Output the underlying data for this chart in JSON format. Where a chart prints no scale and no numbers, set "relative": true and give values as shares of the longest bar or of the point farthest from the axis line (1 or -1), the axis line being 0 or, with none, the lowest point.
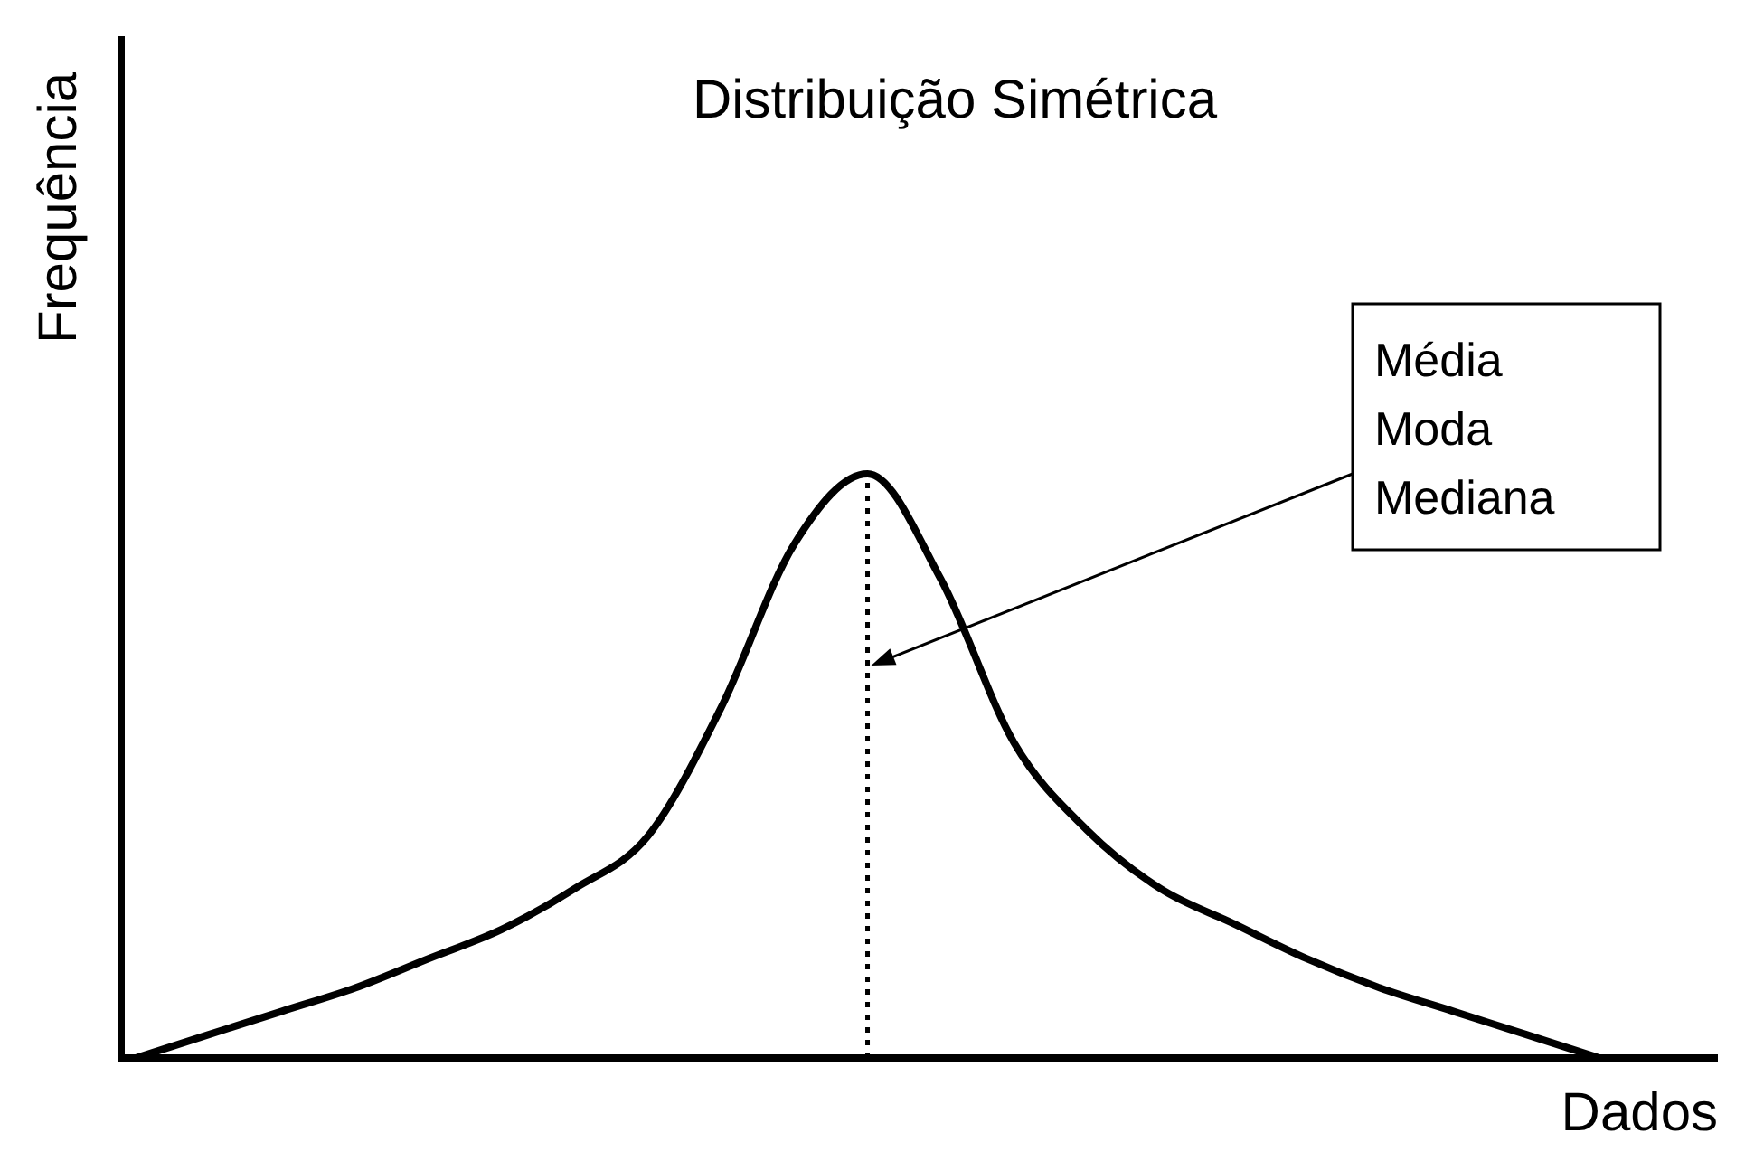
{
  "chart_data": {
    "type": "line",
    "title": "Distribuição Simétrica",
    "xlabel": "Dados",
    "ylabel": "Frequência",
    "relative": true,
    "categories": [
      null,
      null,
      null,
      null,
      null,
      null,
      null,
      null,
      null,
      null,
      null,
      null,
      null,
      null,
      null,
      null,
      null,
      null,
      null,
      null,
      null,
      null
    ],
    "series": [
      {
        "color": "#000000",
        "values": [
          0,
          0.04,
          0.08,
          0.12,
          0.17,
          0.22,
          0.29,
          0.38,
          0.6,
          0.88,
          1,
          0.82,
          0.54,
          0.39,
          0.29,
          0.23,
          0.17,
          0.12,
          0.08,
          0.04,
          0,
          null
        ]
      }
    ],
    "annotations": [
      "Média\nModa\nMediana"
    ],
    "marker": "none",
    "line_style": "solid"
  }
}
